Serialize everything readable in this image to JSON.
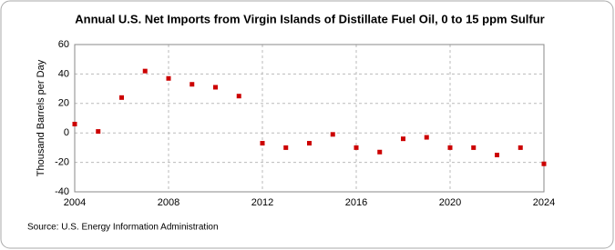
{
  "chart_data": {
    "type": "scatter",
    "title": "Annual U.S. Net Imports from Virgin Islands of Distillate Fuel Oil, 0 to 15 ppm Sulfur",
    "y_label": "Thousand Barrels per Day",
    "source": "Source: U.S. Energy Information Administration",
    "x": [
      2004,
      2005,
      2006,
      2007,
      2008,
      2009,
      2010,
      2011,
      2012,
      2013,
      2014,
      2015,
      2016,
      2017,
      2018,
      2019,
      2020,
      2021,
      2022,
      2023,
      2024
    ],
    "values": [
      6,
      1,
      24,
      42,
      37,
      33,
      31,
      25,
      -7,
      -10,
      -7,
      -1,
      -10,
      -13,
      -4,
      -3,
      -10,
      -10,
      -15,
      -10,
      -21
    ],
    "color": "#cc0000",
    "xlim": [
      2004,
      2024
    ],
    "xticks": [
      2004,
      2008,
      2012,
      2016,
      2020,
      2024
    ],
    "ylim": [
      -40,
      60
    ],
    "yticks": [
      -40,
      -20,
      0,
      20,
      40,
      60
    ],
    "grid": true
  }
}
